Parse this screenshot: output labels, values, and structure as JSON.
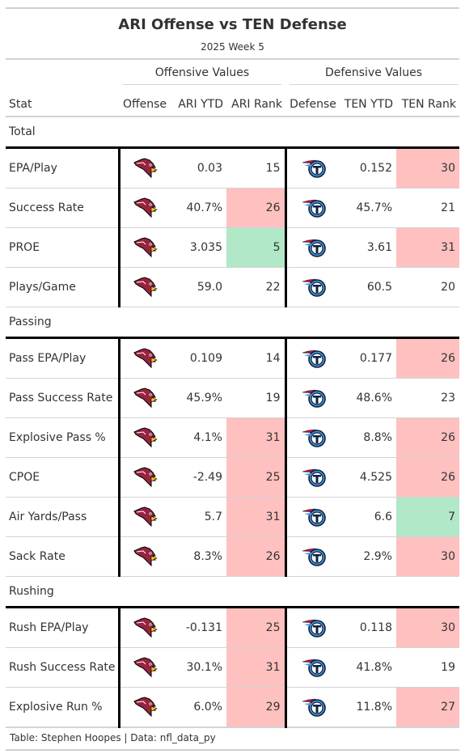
{
  "header": {
    "title": "ARI Offense vs TEN Defense",
    "subtitle": "2025 Week 5"
  },
  "spanners": {
    "offense": "Offensive Values",
    "defense": "Defensive Values"
  },
  "columns": {
    "stat": "Stat",
    "offense": "Offense",
    "off_ytd": "ARI YTD",
    "off_rank": "ARI Rank",
    "defense": "Defense",
    "def_ytd": "TEN YTD",
    "def_rank": "TEN Rank"
  },
  "logos": {
    "offense_icon": "cardinals-logo-icon",
    "defense_icon": "titans-logo-icon"
  },
  "colors": {
    "bad_rank": "#ffc0c0",
    "good_rank": "#b0e8c8"
  },
  "groups": [
    {
      "label": "Total",
      "rows": [
        {
          "stat": "EPA/Play",
          "off_ytd": "0.03",
          "off_rank": "15",
          "off_tier": "none",
          "def_ytd": "0.152",
          "def_rank": "30",
          "def_tier": "bad"
        },
        {
          "stat": "Success Rate",
          "off_ytd": "40.7%",
          "off_rank": "26",
          "off_tier": "bad",
          "def_ytd": "45.7%",
          "def_rank": "21",
          "def_tier": "none"
        },
        {
          "stat": "PROE",
          "off_ytd": "3.035",
          "off_rank": "5",
          "off_tier": "good",
          "def_ytd": "3.61",
          "def_rank": "31",
          "def_tier": "bad"
        },
        {
          "stat": "Plays/Game",
          "off_ytd": "59.0",
          "off_rank": "22",
          "off_tier": "none",
          "def_ytd": "60.5",
          "def_rank": "20",
          "def_tier": "none"
        }
      ]
    },
    {
      "label": "Passing",
      "rows": [
        {
          "stat": "Pass EPA/Play",
          "off_ytd": "0.109",
          "off_rank": "14",
          "off_tier": "none",
          "def_ytd": "0.177",
          "def_rank": "26",
          "def_tier": "bad"
        },
        {
          "stat": "Pass Success Rate",
          "off_ytd": "45.9%",
          "off_rank": "19",
          "off_tier": "none",
          "def_ytd": "48.6%",
          "def_rank": "23",
          "def_tier": "none"
        },
        {
          "stat": "Explosive Pass %",
          "off_ytd": "4.1%",
          "off_rank": "31",
          "off_tier": "bad",
          "def_ytd": "8.8%",
          "def_rank": "26",
          "def_tier": "bad"
        },
        {
          "stat": "CPOE",
          "off_ytd": "-2.49",
          "off_rank": "25",
          "off_tier": "bad",
          "def_ytd": "4.525",
          "def_rank": "26",
          "def_tier": "bad"
        },
        {
          "stat": "Air Yards/Pass",
          "off_ytd": "5.7",
          "off_rank": "31",
          "off_tier": "bad",
          "def_ytd": "6.6",
          "def_rank": "7",
          "def_tier": "good"
        },
        {
          "stat": "Sack Rate",
          "off_ytd": "8.3%",
          "off_rank": "26",
          "off_tier": "bad",
          "def_ytd": "2.9%",
          "def_rank": "30",
          "def_tier": "bad"
        }
      ]
    },
    {
      "label": "Rushing",
      "rows": [
        {
          "stat": "Rush EPA/Play",
          "off_ytd": "-0.131",
          "off_rank": "25",
          "off_tier": "bad",
          "def_ytd": "0.118",
          "def_rank": "30",
          "def_tier": "bad"
        },
        {
          "stat": "Rush Success Rate",
          "off_ytd": "30.1%",
          "off_rank": "31",
          "off_tier": "bad",
          "def_ytd": "41.8%",
          "def_rank": "19",
          "def_tier": "none"
        },
        {
          "stat": "Explosive Run %",
          "off_ytd": "6.0%",
          "off_rank": "29",
          "off_tier": "bad",
          "def_ytd": "11.8%",
          "def_rank": "27",
          "def_tier": "bad"
        }
      ]
    }
  ],
  "footer": {
    "source": "Table: Stephen Hoopes | Data: nfl_data_py"
  }
}
